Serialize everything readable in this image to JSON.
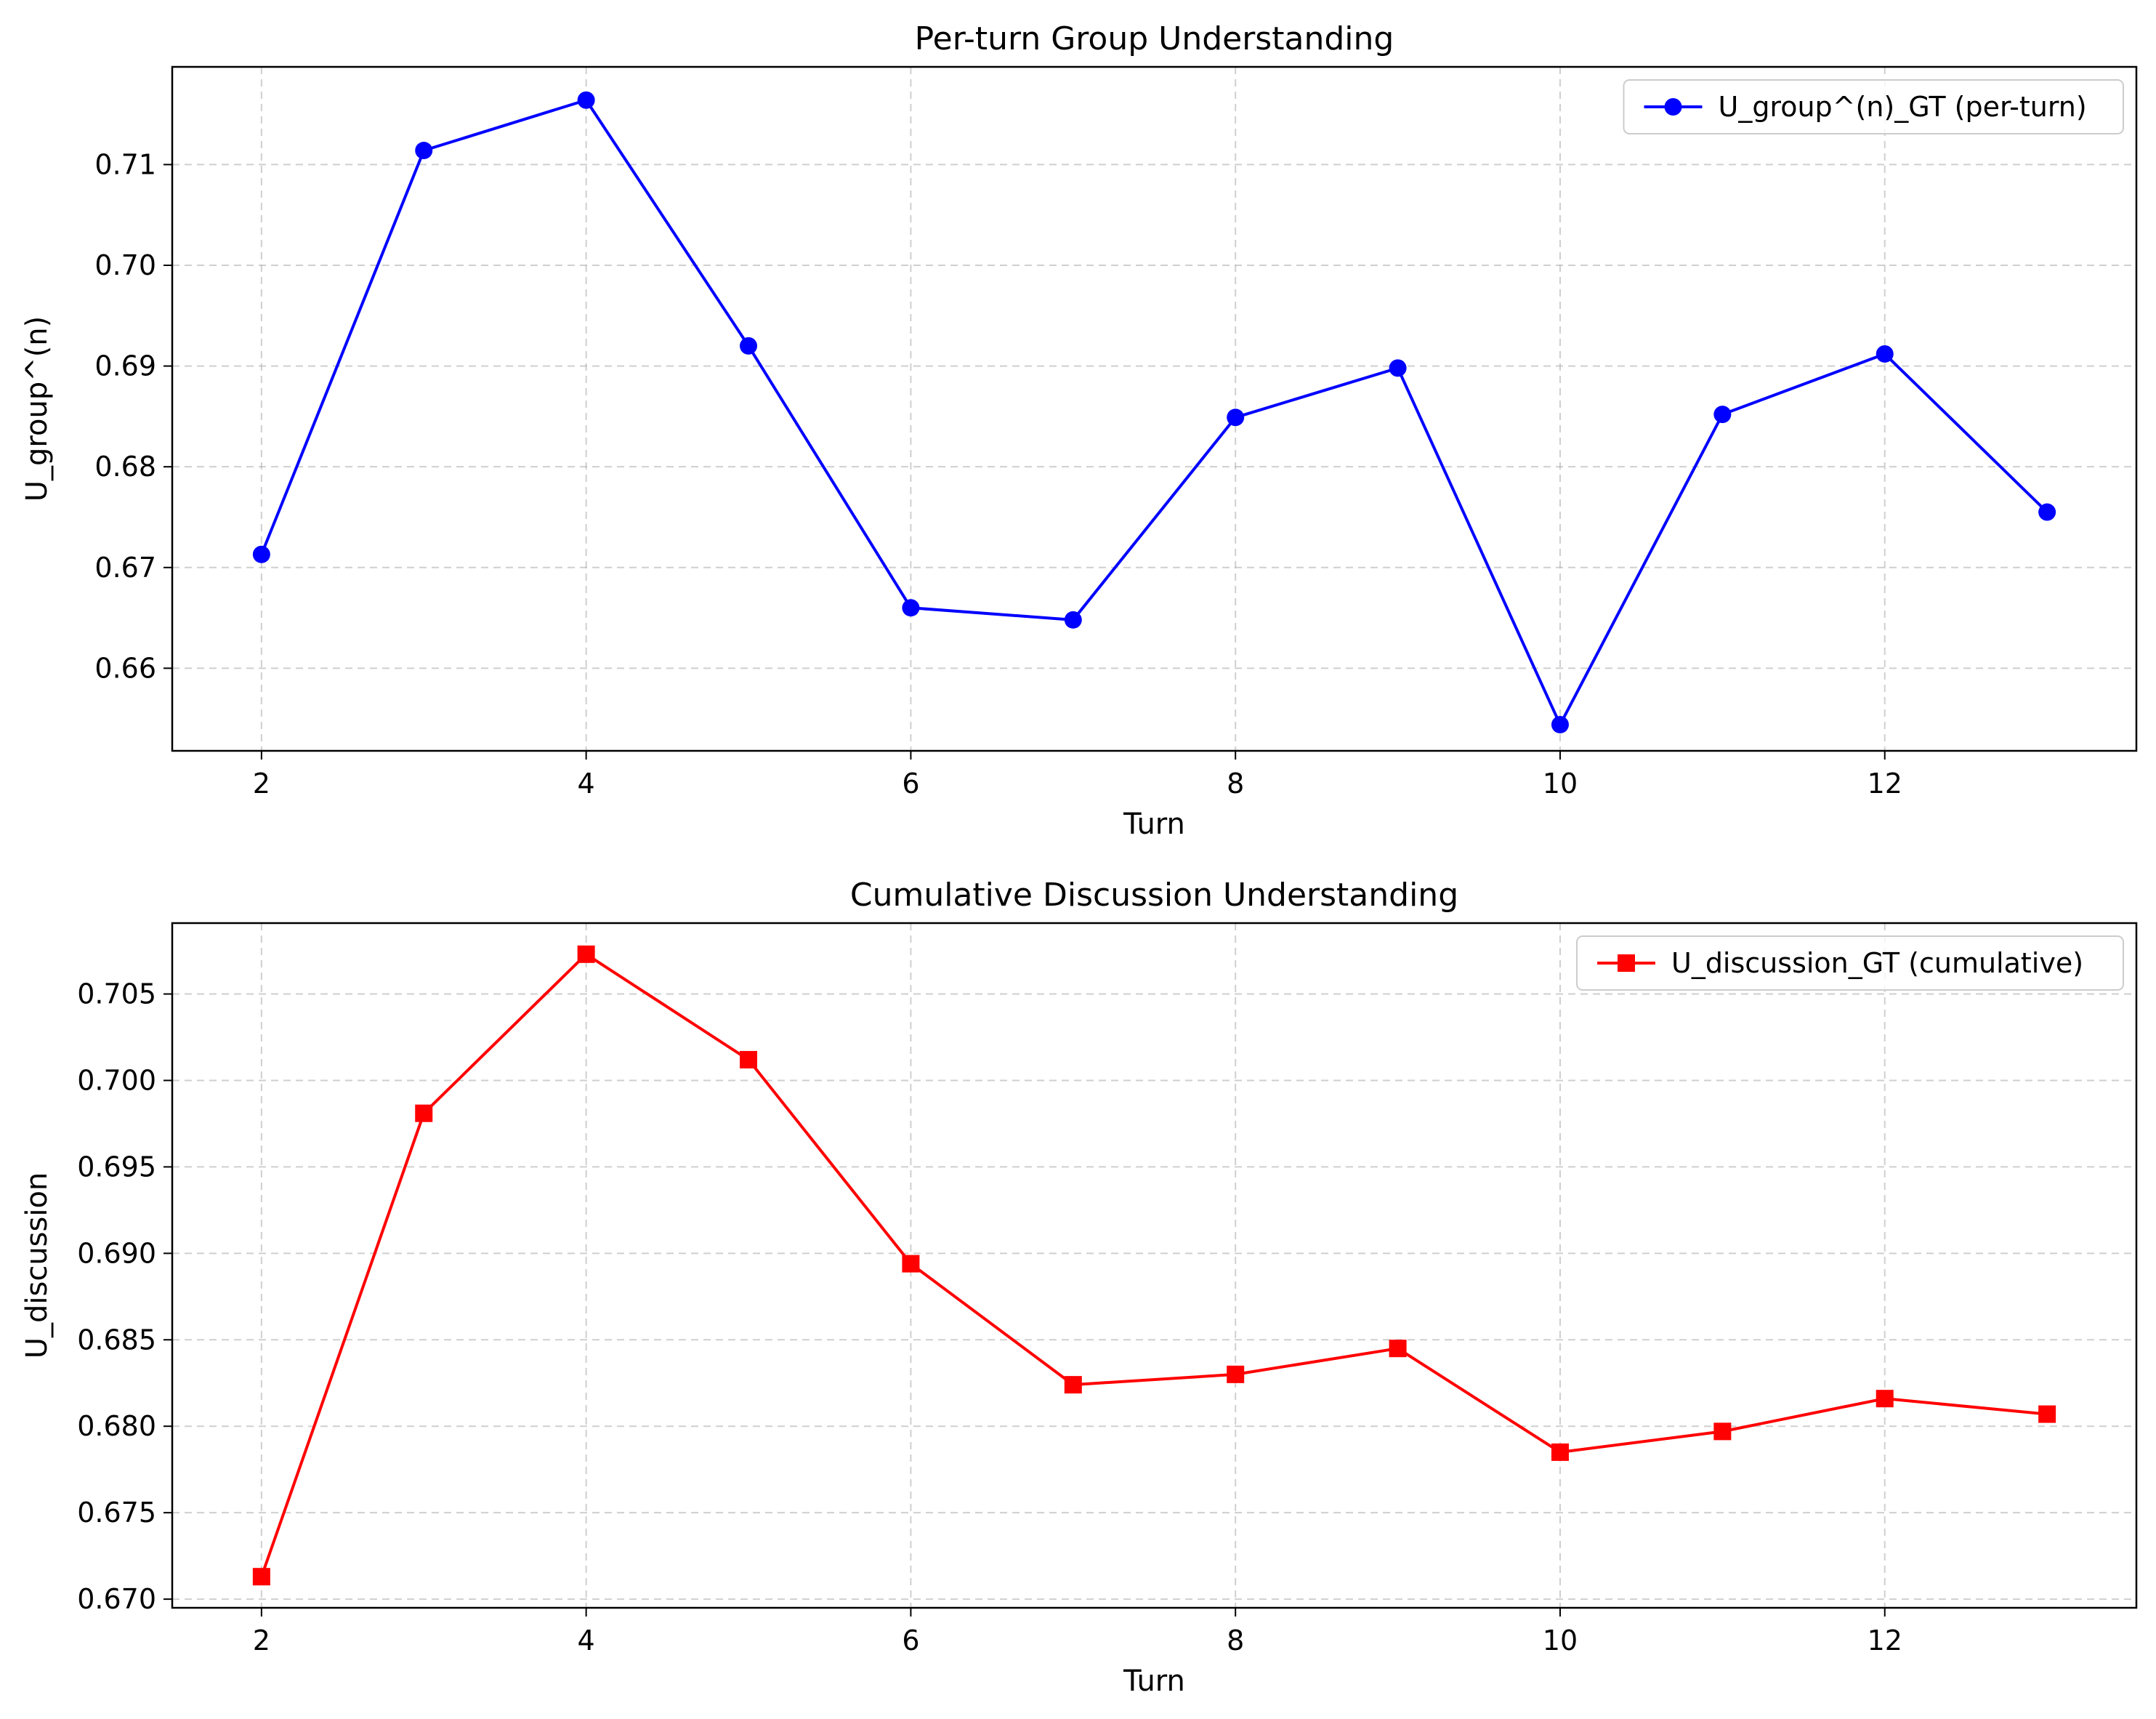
{
  "chart_data": [
    {
      "type": "line",
      "title": "Per-turn Group Understanding",
      "xlabel": "Turn",
      "ylabel": "U_group^(n)",
      "xlim": [
        1.45,
        13.55
      ],
      "ylim": [
        0.6518,
        0.7197
      ],
      "xticks": [
        2,
        4,
        6,
        8,
        10,
        12
      ],
      "xtick_labels": [
        "2",
        "4",
        "6",
        "8",
        "10",
        "12"
      ],
      "yticks": [
        0.66,
        0.67,
        0.68,
        0.69,
        0.7,
        0.71
      ],
      "ytick_labels": [
        "0.66",
        "0.67",
        "0.68",
        "0.69",
        "0.70",
        "0.71"
      ],
      "grid": true,
      "legend_position": "top-right",
      "series": [
        {
          "name": "U_group^(n)_GT (per-turn)",
          "color": "#0000ff",
          "marker": "circle",
          "x": [
            2,
            3,
            4,
            5,
            6,
            7,
            8,
            9,
            10,
            11,
            12,
            13
          ],
          "values": [
            0.6713,
            0.7114,
            0.7164,
            0.692,
            0.666,
            0.6648,
            0.6849,
            0.6898,
            0.6544,
            0.6852,
            0.6912,
            0.6755
          ]
        }
      ]
    },
    {
      "type": "line",
      "title": "Cumulative Discussion Understanding",
      "xlabel": "Turn",
      "ylabel": "U_discussion",
      "xlim": [
        1.45,
        13.55
      ],
      "ylim": [
        0.6695,
        0.7091
      ],
      "xticks": [
        2,
        4,
        6,
        8,
        10,
        12
      ],
      "xtick_labels": [
        "2",
        "4",
        "6",
        "8",
        "10",
        "12"
      ],
      "yticks": [
        0.67,
        0.675,
        0.68,
        0.685,
        0.69,
        0.695,
        0.7,
        0.705
      ],
      "ytick_labels": [
        "0.670",
        "0.675",
        "0.680",
        "0.685",
        "0.690",
        "0.695",
        "0.700",
        "0.705"
      ],
      "grid": true,
      "legend_position": "top-right",
      "series": [
        {
          "name": "U_discussion_GT (cumulative)",
          "color": "#ff0000",
          "marker": "square",
          "x": [
            2,
            3,
            4,
            5,
            6,
            7,
            8,
            9,
            10,
            11,
            12,
            13
          ],
          "values": [
            0.6713,
            0.6981,
            0.7073,
            0.7012,
            0.6894,
            0.6824,
            0.683,
            0.6845,
            0.6785,
            0.6797,
            0.6816,
            0.6807
          ]
        }
      ]
    }
  ]
}
